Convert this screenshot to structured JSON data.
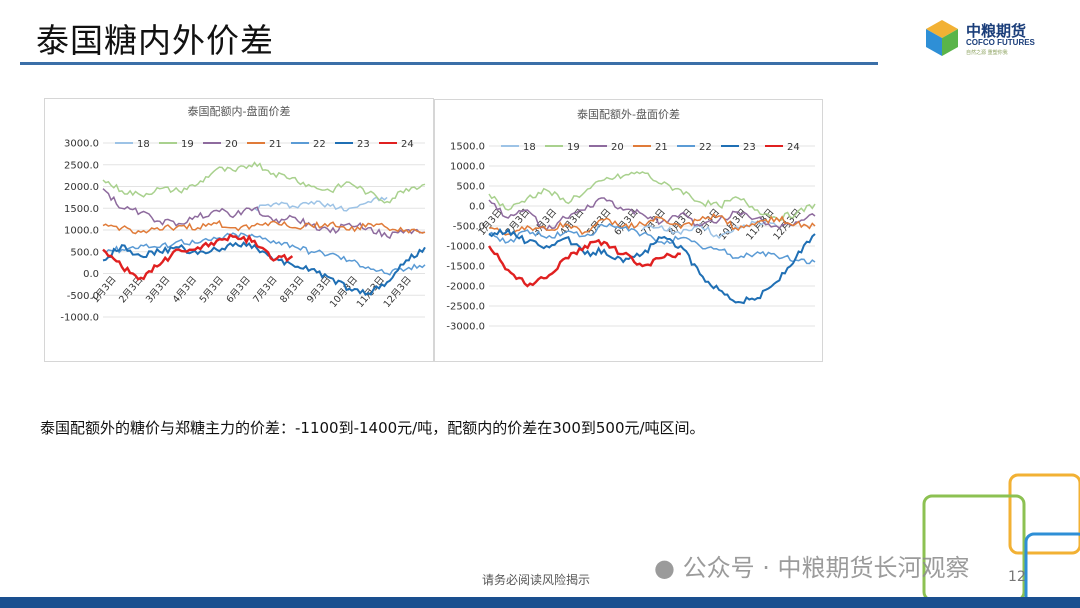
{
  "slide": {
    "title": "泰国糖内外价差",
    "note": "泰国配额外的糖价与郑糖主力的价差：-1100到-1400元/吨，配额内的价差在300到500元/吨区间。",
    "footer": "请务必阅读风险揭示",
    "watermark": "公众号 · 中粮期货长河观察",
    "page_number": "12"
  },
  "logo": {
    "cn": "中粮期货",
    "en": "COFCO FUTURES",
    "tag": "自然之源 重塑你我"
  },
  "colors": {
    "title_rule": "#3b6fa8",
    "bottom_bar": "#1a4f8f",
    "series": {
      "18": "#9dc3e6",
      "19": "#a9d18e",
      "20": "#8e6b9e",
      "21": "#e07b39",
      "22": "#5b9bd5",
      "23": "#1f6fb4",
      "24": "#e02020"
    }
  },
  "chart_data": [
    {
      "type": "line",
      "title": "泰国配额内-盘面价差",
      "x_ticks": [
        "1月3日",
        "2月3日",
        "3月3日",
        "4月3日",
        "5月3日",
        "6月3日",
        "7月3日",
        "8月3日",
        "9月3日",
        "10月3日",
        "11月3日",
        "12月3日"
      ],
      "ylim": [
        -1000,
        3000
      ],
      "y_ticks": [
        "3000.0",
        "2500.0",
        "2000.0",
        "1500.0",
        "1000.0",
        "500.0",
        "0.0",
        "-500.0",
        "-1000.0"
      ],
      "grid": true,
      "legend": "top",
      "series": [
        {
          "name": "18",
          "values": [
            null,
            null,
            null,
            null,
            null,
            null,
            null,
            null,
            1500,
            1600,
            1550,
            1650,
            1550,
            1500,
            1650,
            1750
          ]
        },
        {
          "name": "19",
          "values": [
            2150,
            1900,
            1800,
            1950,
            1900,
            2050,
            2400,
            2350,
            2550,
            2300,
            2200,
            2000,
            1900,
            2100,
            1850,
            1650,
            1950,
            2050
          ]
        },
        {
          "name": "20",
          "values": [
            1950,
            1500,
            1400,
            1200,
            1150,
            1300,
            1450,
            1350,
            1500,
            1200,
            1300,
            1100,
            950,
            1150,
            1050,
            850,
            1000,
            950
          ]
        },
        {
          "name": "21",
          "values": [
            1100,
            1050,
            950,
            1000,
            1100,
            1050,
            1150,
            1050,
            1100,
            1200,
            1050,
            1100,
            1150,
            1000,
            1150,
            1050,
            1000,
            950
          ]
        },
        {
          "name": "22",
          "values": [
            550,
            550,
            650,
            600,
            750,
            700,
            800,
            900,
            850,
            750,
            650,
            500,
            450,
            300,
            150,
            0,
            100,
            200
          ]
        },
        {
          "name": "23",
          "values": [
            300,
            650,
            400,
            500,
            600,
            450,
            550,
            700,
            650,
            300,
            200,
            100,
            -100,
            -350,
            -450,
            -200,
            300,
            600
          ]
        },
        {
          "name": "24",
          "values": [
            550,
            150,
            -100,
            200,
            550,
            600,
            750,
            850,
            750,
            300,
            400
          ]
        }
      ]
    },
    {
      "type": "line",
      "title": "泰国配额外-盘面价差",
      "x_ticks": [
        "1月3日",
        "2月3日",
        "3月3日",
        "4月3日",
        "5月3日",
        "6月3日",
        "7月3日",
        "8月3日",
        "9月3日",
        "10月3日",
        "11月3日",
        "12月3日"
      ],
      "ylim": [
        -3000,
        1500
      ],
      "y_ticks": [
        "1500.0",
        "1000.0",
        "500.0",
        "0.0",
        "-500.0",
        "-1000.0",
        "-1500.0",
        "-2000.0",
        "-2500.0",
        "-3000.0"
      ],
      "grid": true,
      "legend": "top",
      "series": [
        {
          "name": "18",
          "values": [
            null,
            null,
            null,
            null,
            null,
            null,
            null,
            null,
            -600,
            -500,
            -700,
            -450,
            -800,
            -550,
            -400,
            -500
          ]
        },
        {
          "name": "19",
          "values": [
            300,
            -100,
            200,
            400,
            100,
            350,
            650,
            750,
            850,
            550,
            400,
            100,
            0,
            200,
            -100,
            -300,
            -200,
            50
          ]
        },
        {
          "name": "20",
          "values": [
            150,
            -300,
            -100,
            -600,
            -300,
            -100,
            200,
            -100,
            -200,
            -400,
            -200,
            -500,
            -350,
            -150,
            -300,
            -500,
            -400,
            -250
          ]
        },
        {
          "name": "21",
          "values": [
            -550,
            -700,
            -500,
            -600,
            -450,
            -650,
            -350,
            -500,
            -450,
            -300,
            -550,
            -350,
            -250,
            -600,
            -400,
            -300,
            -450,
            -500
          ]
        },
        {
          "name": "22",
          "values": [
            -700,
            -900,
            -600,
            -800,
            -650,
            -750,
            -500,
            -550,
            -700,
            -900,
            -800,
            -1000,
            -1100,
            -1300,
            -1150,
            -1250,
            -1350,
            -1400
          ]
        },
        {
          "name": "23",
          "values": [
            -700,
            -600,
            -900,
            -1000,
            -800,
            -1200,
            -1100,
            -1400,
            -1200,
            -800,
            -1000,
            -1700,
            -2100,
            -2400,
            -2300,
            -1900,
            -1300,
            -700
          ]
        },
        {
          "name": "24",
          "values": [
            -1000,
            -1600,
            -2000,
            -1800,
            -1300,
            -1000,
            -900,
            -1200,
            -1500,
            -1300,
            -1200
          ]
        }
      ]
    }
  ]
}
